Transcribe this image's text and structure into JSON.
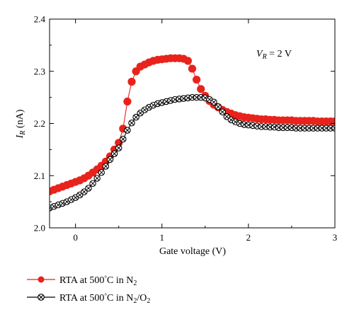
{
  "chart_data": {
    "type": "line",
    "xlabel": "Gate voltage (V)",
    "ylabel": {
      "main": "I",
      "sub": "R",
      "unit": " (nA)"
    },
    "xlim": [
      -0.3,
      3.0
    ],
    "ylim": [
      2.0,
      2.4
    ],
    "xticks": [
      0,
      1,
      2,
      3
    ],
    "yticks": [
      2.0,
      2.1,
      2.2,
      2.3,
      2.4
    ],
    "xtick_labels": [
      "0",
      "1",
      "2",
      "3"
    ],
    "ytick_labels": [
      "2.0",
      "2.1",
      "2.2",
      "2.3",
      "2.4"
    ],
    "grid": false,
    "annotation": {
      "v": "V",
      "sub": "R",
      "rest": " = 2 V"
    },
    "legend_position": "bottom-left",
    "series": [
      {
        "name": {
          "prefix": "RTA at 500",
          "deg": "°",
          "mid": "C in N",
          "sub": "2",
          "tail": ""
        },
        "color": "#e8231c",
        "marker": "filled-circle",
        "x": [
          -0.3,
          -0.25,
          -0.2,
          -0.15,
          -0.1,
          -0.05,
          0.0,
          0.05,
          0.1,
          0.15,
          0.2,
          0.25,
          0.3,
          0.35,
          0.4,
          0.45,
          0.5,
          0.55,
          0.6,
          0.65,
          0.7,
          0.75,
          0.8,
          0.85,
          0.9,
          0.95,
          1.0,
          1.05,
          1.1,
          1.15,
          1.2,
          1.25,
          1.3,
          1.35,
          1.4,
          1.45,
          1.5,
          1.55,
          1.6,
          1.65,
          1.7,
          1.75,
          1.8,
          1.85,
          1.9,
          1.95,
          2.0,
          2.05,
          2.1,
          2.15,
          2.2,
          2.25,
          2.3,
          2.35,
          2.4,
          2.45,
          2.5,
          2.55,
          2.6,
          2.65,
          2.7,
          2.75,
          2.8,
          2.85,
          2.9,
          2.95,
          3.0
        ],
        "y": [
          2.07,
          2.073,
          2.076,
          2.079,
          2.082,
          2.085,
          2.088,
          2.091,
          2.095,
          2.1,
          2.106,
          2.112,
          2.119,
          2.127,
          2.137,
          2.15,
          2.163,
          2.19,
          2.242,
          2.28,
          2.3,
          2.309,
          2.313,
          2.317,
          2.32,
          2.322,
          2.323,
          2.324,
          2.325,
          2.325,
          2.325,
          2.324,
          2.32,
          2.305,
          2.284,
          2.266,
          2.253,
          2.243,
          2.236,
          2.231,
          2.226,
          2.222,
          2.219,
          2.216,
          2.214,
          2.212,
          2.211,
          2.21,
          2.209,
          2.208,
          2.208,
          2.207,
          2.207,
          2.206,
          2.206,
          2.206,
          2.206,
          2.205,
          2.205,
          2.205,
          2.205,
          2.205,
          2.204,
          2.204,
          2.204,
          2.204,
          2.204
        ]
      },
      {
        "name": {
          "prefix": "RTA at 500",
          "deg": "°",
          "mid": "C in N",
          "sub": "2",
          "tail": "/O",
          "sub2": "2"
        },
        "color": "#000000",
        "marker": "crossed-circle",
        "x": [
          -0.3,
          -0.25,
          -0.2,
          -0.15,
          -0.1,
          -0.05,
          0.0,
          0.05,
          0.1,
          0.15,
          0.2,
          0.25,
          0.3,
          0.35,
          0.4,
          0.45,
          0.5,
          0.55,
          0.6,
          0.65,
          0.7,
          0.75,
          0.8,
          0.85,
          0.9,
          0.95,
          1.0,
          1.05,
          1.1,
          1.15,
          1.2,
          1.25,
          1.3,
          1.35,
          1.4,
          1.45,
          1.5,
          1.55,
          1.6,
          1.65,
          1.7,
          1.75,
          1.8,
          1.85,
          1.9,
          1.95,
          2.0,
          2.05,
          2.1,
          2.15,
          2.2,
          2.25,
          2.3,
          2.35,
          2.4,
          2.45,
          2.5,
          2.55,
          2.6,
          2.65,
          2.7,
          2.75,
          2.8,
          2.85,
          2.9,
          2.95,
          3.0
        ],
        "y": [
          2.038,
          2.041,
          2.044,
          2.047,
          2.05,
          2.054,
          2.058,
          2.063,
          2.069,
          2.076,
          2.085,
          2.095,
          2.106,
          2.118,
          2.131,
          2.142,
          2.153,
          2.17,
          2.187,
          2.201,
          2.212,
          2.22,
          2.226,
          2.231,
          2.235,
          2.238,
          2.24,
          2.242,
          2.244,
          2.246,
          2.247,
          2.248,
          2.249,
          2.25,
          2.25,
          2.25,
          2.249,
          2.246,
          2.241,
          2.232,
          2.222,
          2.213,
          2.207,
          2.203,
          2.2,
          2.198,
          2.197,
          2.196,
          2.195,
          2.194,
          2.194,
          2.193,
          2.193,
          2.192,
          2.192,
          2.192,
          2.192,
          2.191,
          2.191,
          2.191,
          2.191,
          2.191,
          2.191,
          2.191,
          2.191,
          2.191,
          2.191
        ]
      }
    ]
  }
}
